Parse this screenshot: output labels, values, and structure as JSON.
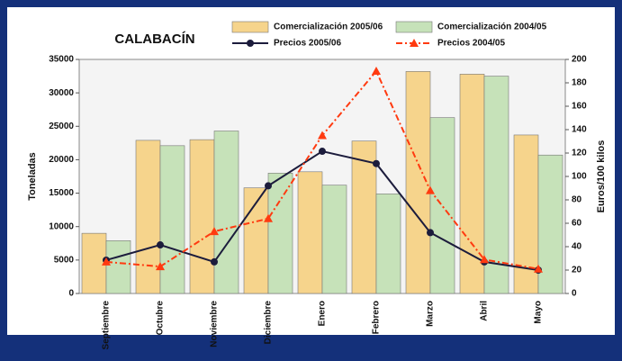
{
  "chart_data": {
    "type": "bar",
    "title": "CALABACÍN",
    "categories": [
      "Septiembre",
      "Octubre",
      "Noviembre",
      "Diciembre",
      "Enero",
      "Febrero",
      "Marzo",
      "Abril",
      "Mayo"
    ],
    "series": [
      {
        "name": "Comercialización 2005/06",
        "color": "#f6d48c",
        "values": [
          9000,
          22900,
          23000,
          15800,
          18200,
          22800,
          33200,
          32800,
          23700
        ]
      },
      {
        "name": "Comercialización 2004/05",
        "color": "#c6e2b9",
        "values": [
          7900,
          22100,
          24300,
          18000,
          16200,
          14900,
          26300,
          32500,
          20700
        ]
      },
      {
        "name": "Precios 2005/06",
        "color": "#1c1c3c",
        "type": "line",
        "marker": "circle",
        "axis": "y2",
        "values": [
          28.5,
          41.5,
          27,
          92,
          121.5,
          111,
          52,
          27,
          20
        ]
      },
      {
        "name": "Precios 2004/05",
        "color": "#ff3a10",
        "type": "line",
        "marker": "triangle",
        "dashed": true,
        "axis": "y2",
        "values": [
          27,
          23,
          53,
          64,
          135,
          190,
          88,
          29,
          21
        ]
      }
    ],
    "ylabel": "Toneladas",
    "y2label": "Euros/100 kilos",
    "ylim": [
      0,
      35000
    ],
    "yticks": [
      0,
      5000,
      10000,
      15000,
      20000,
      25000,
      30000,
      35000
    ],
    "y2lim": [
      0,
      200
    ],
    "y2ticks": [
      0,
      20,
      40,
      60,
      80,
      100,
      120,
      140,
      160,
      180,
      200
    ],
    "grid": false,
    "legend": "top"
  }
}
